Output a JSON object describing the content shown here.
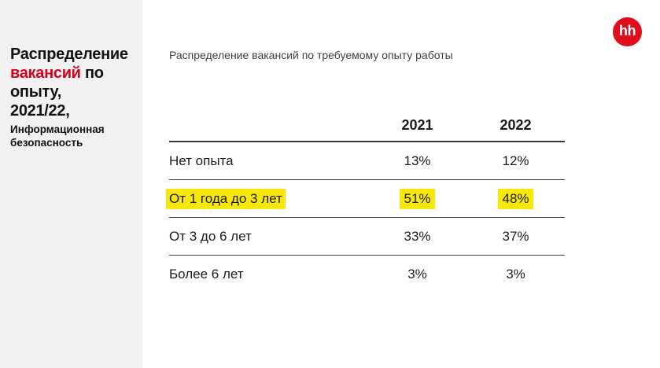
{
  "page": {
    "sidebar_bg": "#f1f1f2",
    "accent_red": "#d6001c",
    "logo_red": "#e00d1d",
    "highlight_yellow": "#f8e80a",
    "line_color": "#3b3b3b"
  },
  "logo": {
    "text": "hh"
  },
  "sidebar": {
    "title_lines": [
      {
        "segments": [
          {
            "text": "Распределение",
            "red": false
          }
        ]
      },
      {
        "segments": [
          {
            "text": "вакансий",
            "red": true
          },
          {
            "text": " по",
            "red": false
          }
        ]
      },
      {
        "segments": [
          {
            "text": "опыту,",
            "red": false
          }
        ]
      },
      {
        "segments": [
          {
            "text": "2021/22,",
            "red": false
          }
        ]
      }
    ],
    "subtitle": "Информационная безопасность"
  },
  "chart_data": {
    "type": "table",
    "title": "Распределение вакансий по требуемому опыту работы",
    "columns": [
      "2021",
      "2022"
    ],
    "rows": [
      {
        "label": "Нет опыта",
        "values": [
          "13%",
          "12%"
        ],
        "highlight": false
      },
      {
        "label": "От 1 года до 3 лет",
        "values": [
          "51%",
          "48%"
        ],
        "highlight": true
      },
      {
        "label": "От 3 до 6 лет",
        "values": [
          "33%",
          "37%"
        ],
        "highlight": false
      },
      {
        "label": "Более 6 лет",
        "values": [
          "3%",
          "3%"
        ],
        "highlight": false
      }
    ]
  }
}
